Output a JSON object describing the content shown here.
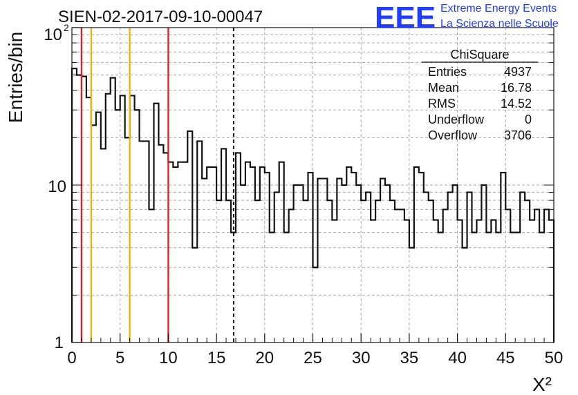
{
  "chart_data": {
    "type": "histogram",
    "title": "SIEN-02-2017-09-10-00047",
    "xlabel": "X²",
    "ylabel": "Entries/bin",
    "x_range": [
      0,
      50
    ],
    "y_range": [
      1,
      100
    ],
    "y_scale": "log",
    "bin_width": 0.5,
    "grid": true,
    "x_ticks": [
      0,
      5,
      10,
      15,
      20,
      25,
      30,
      35,
      40,
      45,
      50
    ],
    "x_tick_labels": [
      "0",
      "5",
      "10",
      "15",
      "20",
      "25",
      "30",
      "35",
      "40",
      "45",
      "50"
    ],
    "y_tick_labels": {
      "1": "1",
      "10": "10",
      "100": "10",
      "100_exponent": "2"
    },
    "values": [
      55,
      50,
      49,
      36,
      24,
      29,
      17,
      38,
      48,
      30,
      37,
      20,
      37,
      30,
      19,
      19,
      7,
      33,
      18,
      16,
      14,
      13,
      14,
      14,
      22,
      4,
      19,
      11,
      13,
      13,
      8,
      17,
      8,
      5,
      16,
      10,
      14,
      13,
      8,
      13,
      12,
      5,
      9,
      14,
      5,
      7,
      10,
      10,
      8,
      12,
      3,
      11,
      11,
      8,
      6,
      11,
      10,
      13,
      12,
      10,
      8,
      9,
      6,
      8,
      11,
      10,
      8,
      7,
      7,
      6,
      4,
      13,
      12,
      9,
      8,
      6,
      5,
      7,
      9,
      10,
      6,
      4,
      9,
      5,
      6,
      10,
      5,
      6,
      5,
      12,
      7,
      5,
      5,
      9,
      8,
      6,
      7,
      5,
      7,
      6
    ],
    "vertical_lines": [
      {
        "x": 1,
        "color": "#e02020",
        "style": "solid"
      },
      {
        "x": 2,
        "color": "#f2b400",
        "style": "solid"
      },
      {
        "x": 6,
        "color": "#f2b400",
        "style": "solid"
      },
      {
        "x": 10,
        "color": "#e02020",
        "style": "solid"
      },
      {
        "x": 16.78,
        "color": "#111111",
        "style": "dashed"
      }
    ],
    "stats_box": {
      "title": "ChiSquare",
      "rows": [
        {
          "label": "Entries",
          "value": "4937"
        },
        {
          "label": "Mean",
          "value": "16.78"
        },
        {
          "label": "RMS",
          "value": "14.52"
        },
        {
          "label": "Underflow",
          "value": "0"
        },
        {
          "label": "Overflow",
          "value": "3706"
        }
      ]
    },
    "legend_position": "top-right"
  },
  "branding": {
    "logo_text": "EEE",
    "line1": "Extreme Energy Events",
    "line2": "La Scienza nelle Scuole",
    "color": "#1f3cff"
  },
  "colors": {
    "axis": "#111111",
    "grid": "#a9a9a9",
    "histogram": "#111111",
    "red_line": "#e02020",
    "yellow_line": "#f2b400"
  }
}
